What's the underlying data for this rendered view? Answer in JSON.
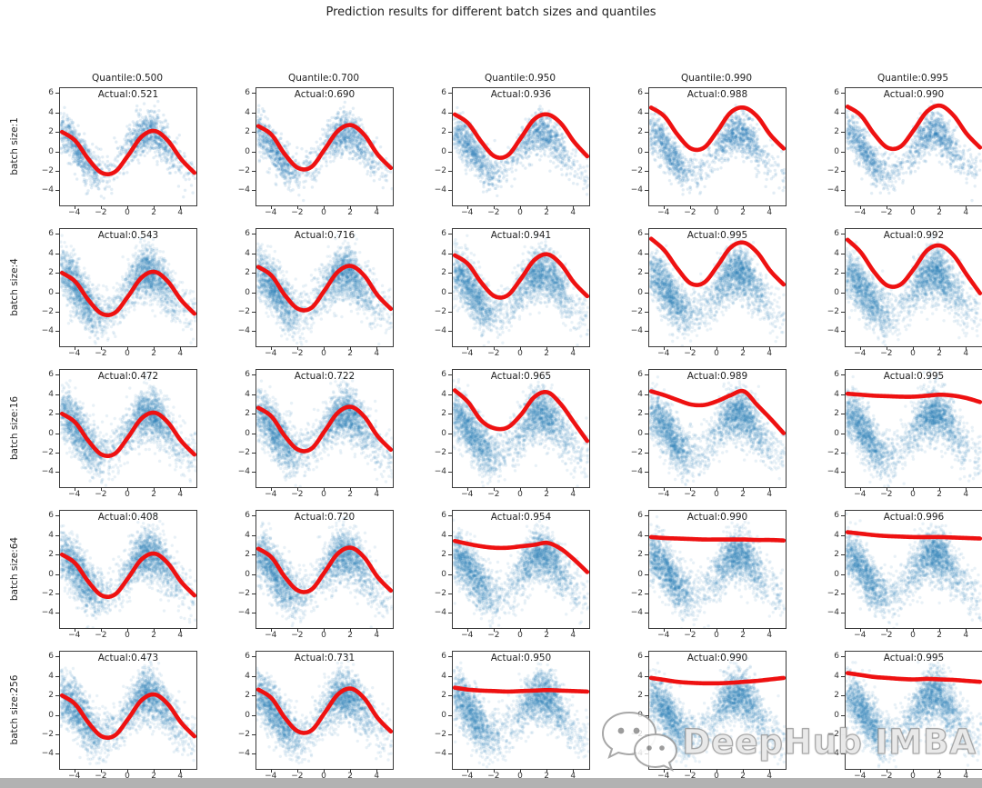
{
  "figure": {
    "watermark": {
      "text": "DeepHub IMBA",
      "icon": "wechat-icon"
    },
    "bottom_bar_color": "#b2b2b2"
  },
  "chart_data": {
    "type": "scatter",
    "title": "Prediction results for different batch sizes and quantiles",
    "grid": {
      "rows": 5,
      "cols": 5
    },
    "col_titles": [
      "Quantile:0.500",
      "Quantile:0.700",
      "Quantile:0.950",
      "Quantile:0.990",
      "Quantile:0.995"
    ],
    "row_labels": [
      "batch size:1",
      "batch size:4",
      "batch size:16",
      "batch size:64",
      "batch size:256"
    ],
    "quantiles": [
      0.5,
      0.7,
      0.95,
      0.99,
      0.995
    ],
    "batch_sizes": [
      1,
      4,
      16,
      64,
      256
    ],
    "actual_prefix": "Actual:",
    "actual_values": [
      [
        "0.521",
        "0.690",
        "0.936",
        "0.988",
        "0.990"
      ],
      [
        "0.543",
        "0.716",
        "0.941",
        "0.995",
        "0.992"
      ],
      [
        "0.472",
        "0.722",
        "0.965",
        "0.989",
        "0.995"
      ],
      [
        "0.408",
        "0.720",
        "0.954",
        "0.990",
        "0.996"
      ],
      [
        "0.473",
        "0.731",
        "0.950",
        "0.990",
        "0.995"
      ]
    ],
    "x_ticks": [
      -4,
      -2,
      0,
      2,
      4
    ],
    "y_ticks": [
      6,
      4,
      2,
      0,
      -2,
      -4
    ],
    "x_tick_labels": [
      "−4",
      "−2",
      "0",
      "2",
      "4"
    ],
    "y_tick_labels": [
      "6",
      "4",
      "2",
      "0",
      "−2",
      "−4"
    ],
    "xlim": [
      -5.15,
      5.15
    ],
    "ylim": [
      -5.45,
      6.6
    ],
    "scatter": {
      "color": "#1f77b4",
      "model": "y = 2.15*sin(0.92*(x+0.2)) + gaussian noise",
      "median": {
        "amplitude": 2.15,
        "freq": 0.92,
        "phase": 0.2
      },
      "clusters": [
        -3.8,
        1.6
      ],
      "cluster_sigma": 1.05,
      "uniform_frac": 0.12,
      "x_range": [
        -5.1,
        5.1
      ],
      "noise_sigma_row1": 1.05,
      "noise_sigma_other": 1.3,
      "n_row1": 1500,
      "n_other": 2800,
      "alpha_row1": 0.13,
      "alpha_other": 0.1,
      "dot_radius": 1.7
    },
    "line": {
      "color": "#ee1111",
      "width": 4.6
    },
    "lines_x": [
      -5,
      -4,
      -3,
      -2,
      -1,
      0,
      1,
      2,
      3,
      4,
      5
    ],
    "lines_y": [
      [
        [
          2.1,
          1.2,
          -0.7,
          -2.1,
          -2.0,
          -0.3,
          1.6,
          2.2,
          1.2,
          -0.7,
          -2.1
        ],
        [
          2.7,
          1.8,
          -0.2,
          -1.6,
          -1.5,
          0.3,
          2.2,
          2.8,
          1.8,
          -0.2,
          -1.6
        ],
        [
          3.9,
          3.0,
          1.1,
          -0.4,
          -0.3,
          1.5,
          3.4,
          3.9,
          3.0,
          1.1,
          -0.4
        ],
        [
          4.6,
          3.7,
          1.8,
          0.4,
          0.5,
          2.2,
          4.1,
          4.6,
          3.7,
          1.8,
          0.4
        ],
        [
          4.7,
          3.8,
          1.9,
          0.5,
          0.6,
          2.3,
          4.2,
          4.8,
          3.8,
          1.9,
          0.5
        ]
      ],
      [
        [
          2.1,
          1.2,
          -0.7,
          -2.1,
          -2.0,
          -0.3,
          1.6,
          2.2,
          1.2,
          -0.7,
          -2.1
        ],
        [
          2.7,
          1.8,
          -0.2,
          -1.6,
          -1.5,
          0.3,
          2.2,
          2.8,
          1.8,
          -0.2,
          -1.6
        ],
        [
          3.9,
          3.0,
          1.1,
          -0.3,
          -0.2,
          1.5,
          3.4,
          4.0,
          3.0,
          1.1,
          -0.3
        ],
        [
          5.6,
          4.4,
          2.5,
          1.0,
          1.1,
          2.8,
          4.7,
          5.2,
          4.2,
          2.3,
          0.9
        ],
        [
          5.5,
          4.2,
          2.2,
          0.8,
          0.9,
          2.5,
          4.4,
          4.9,
          3.9,
          1.9,
          0.0
        ]
      ],
      [
        [
          2.1,
          1.2,
          -0.7,
          -2.1,
          -2.0,
          -0.3,
          1.6,
          2.2,
          1.2,
          -0.7,
          -2.1
        ],
        [
          2.7,
          1.8,
          -0.2,
          -1.6,
          -1.5,
          0.3,
          2.2,
          2.8,
          1.8,
          -0.2,
          -1.6
        ],
        [
          4.5,
          3.3,
          1.4,
          0.6,
          0.7,
          2.0,
          3.8,
          4.3,
          3.1,
          1.2,
          -0.7
        ],
        [
          4.4,
          4.0,
          3.5,
          3.05,
          3.0,
          3.4,
          4.0,
          4.4,
          3.0,
          1.6,
          0.1
        ],
        [
          4.15,
          4.05,
          3.95,
          3.9,
          3.85,
          3.85,
          3.95,
          4.05,
          3.95,
          3.7,
          3.3
        ]
      ],
      [
        [
          2.1,
          1.2,
          -0.7,
          -2.1,
          -2.0,
          -0.3,
          1.6,
          2.2,
          1.2,
          -0.7,
          -2.1
        ],
        [
          2.7,
          1.8,
          -0.2,
          -1.6,
          -1.5,
          0.3,
          2.2,
          2.8,
          1.8,
          -0.2,
          -1.6
        ],
        [
          3.5,
          3.2,
          2.95,
          2.8,
          2.8,
          2.95,
          3.1,
          3.3,
          2.7,
          1.6,
          0.3
        ],
        [
          3.9,
          3.8,
          3.75,
          3.7,
          3.65,
          3.65,
          3.65,
          3.65,
          3.6,
          3.6,
          3.55
        ],
        [
          4.4,
          4.25,
          4.1,
          4.0,
          3.95,
          3.9,
          3.9,
          3.9,
          3.85,
          3.8,
          3.75
        ]
      ],
      [
        [
          2.1,
          1.2,
          -0.7,
          -2.1,
          -2.0,
          -0.3,
          1.6,
          2.2,
          1.2,
          -0.7,
          -2.1
        ],
        [
          2.7,
          1.8,
          -0.2,
          -1.6,
          -1.5,
          0.3,
          2.2,
          2.8,
          1.8,
          -0.2,
          -1.6
        ],
        [
          2.9,
          2.7,
          2.6,
          2.55,
          2.5,
          2.55,
          2.6,
          2.65,
          2.6,
          2.55,
          2.5
        ],
        [
          3.9,
          3.7,
          3.5,
          3.4,
          3.35,
          3.35,
          3.4,
          3.5,
          3.6,
          3.75,
          3.9
        ],
        [
          4.4,
          4.2,
          4.0,
          3.9,
          3.8,
          3.75,
          3.8,
          3.75,
          3.7,
          3.6,
          3.5
        ]
      ]
    ]
  }
}
